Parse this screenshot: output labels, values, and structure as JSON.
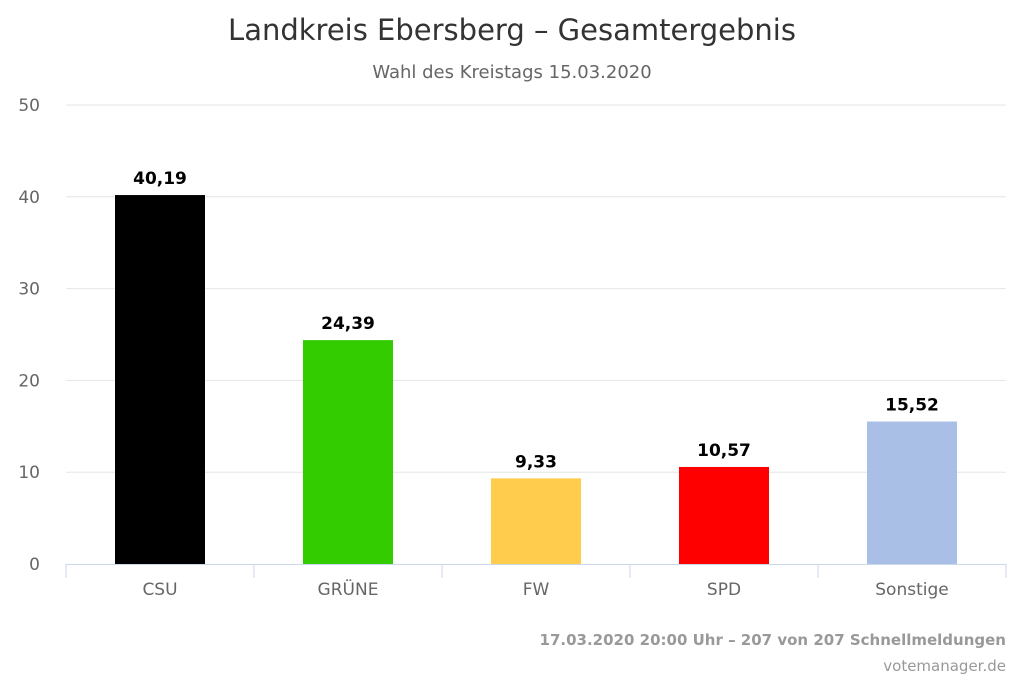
{
  "chart_data": {
    "type": "bar",
    "title": "Landkreis Ebersberg – Gesamtergebnis",
    "subtitle": "Wahl des Kreistags 15.03.2020",
    "categories": [
      "CSU",
      "GRÜNE",
      "FW",
      "SPD",
      "Sonstige"
    ],
    "values": [
      40.19,
      24.39,
      9.33,
      10.57,
      15.52
    ],
    "value_labels": [
      "40,19",
      "24,39",
      "9,33",
      "10,57",
      "15,52"
    ],
    "colors": [
      "#000000",
      "#33cc00",
      "#ffcc4d",
      "#ff0000",
      "#aabfe6"
    ],
    "yticks": [
      0,
      10,
      20,
      30,
      40,
      50
    ],
    "ylim": [
      0,
      50
    ],
    "xlabel": "",
    "ylabel": "",
    "grid": true,
    "legend": "none"
  },
  "footer": {
    "status": "17.03.2020 20:00 Uhr – 207 von 207 Schnellmeldungen",
    "credit": "votemanager.de"
  }
}
